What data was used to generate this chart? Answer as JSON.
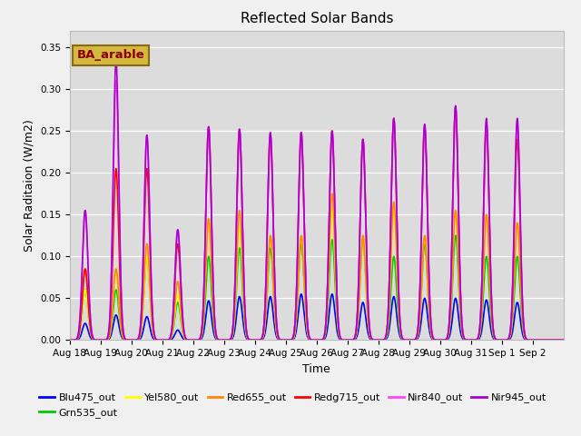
{
  "title": "Reflected Solar Bands",
  "xlabel": "Time",
  "ylabel": "Solar Raditaion (W/m2)",
  "ylim": [
    0.0,
    0.37
  ],
  "yticks": [
    0.0,
    0.05,
    0.1,
    0.15,
    0.2,
    0.25,
    0.3,
    0.35
  ],
  "axes_facecolor": "#dcdcdc",
  "annotation_text": "BA_arable",
  "annotation_color": "#8B0000",
  "annotation_bg": "#d4b840",
  "annotation_edge": "#8B6914",
  "series": [
    {
      "name": "Blu475_out",
      "color": "#0000ff",
      "lw": 1.2,
      "key": "blu"
    },
    {
      "name": "Grn535_out",
      "color": "#00cc00",
      "lw": 1.2,
      "key": "grn"
    },
    {
      "name": "Yel580_out",
      "color": "#ffff00",
      "lw": 1.2,
      "key": "yel"
    },
    {
      "name": "Red655_out",
      "color": "#ff8800",
      "lw": 1.2,
      "key": "red"
    },
    {
      "name": "Redg715_out",
      "color": "#ff0000",
      "lw": 1.2,
      "key": "redg"
    },
    {
      "name": "Nir840_out",
      "color": "#ff44ff",
      "lw": 1.2,
      "key": "nir840"
    },
    {
      "name": "Nir945_out",
      "color": "#aa00cc",
      "lw": 1.2,
      "key": "nir945"
    }
  ],
  "xtick_labels": [
    "Aug 18",
    "Aug 19",
    "Aug 20",
    "Aug 21",
    "Aug 22",
    "Aug 23",
    "Aug 24",
    "Aug 25",
    "Aug 26",
    "Aug 27",
    "Aug 28",
    "Aug 29",
    "Aug 30",
    "Aug 31",
    "Sep 1",
    "Sep 2"
  ],
  "num_days": 16,
  "sigma": 0.09,
  "peaks": [
    {
      "day": 0,
      "blu": 0.02,
      "grn": 0.06,
      "yel": 0.06,
      "red": 0.085,
      "redg": 0.085,
      "nir840": 0.155,
      "nir945": 0.155
    },
    {
      "day": 1,
      "blu": 0.03,
      "grn": 0.06,
      "yel": 0.08,
      "red": 0.085,
      "redg": 0.205,
      "nir840": 0.31,
      "nir945": 0.335
    },
    {
      "day": 2,
      "blu": 0.028,
      "grn": 0.1,
      "yel": 0.1,
      "red": 0.115,
      "redg": 0.205,
      "nir840": 0.245,
      "nir945": 0.245
    },
    {
      "day": 3,
      "blu": 0.012,
      "grn": 0.045,
      "yel": 0.055,
      "red": 0.07,
      "redg": 0.115,
      "nir840": 0.132,
      "nir945": 0.132
    },
    {
      "day": 4,
      "blu": 0.047,
      "grn": 0.1,
      "yel": 0.145,
      "red": 0.145,
      "redg": 0.255,
      "nir840": 0.255,
      "nir945": 0.255
    },
    {
      "day": 5,
      "blu": 0.052,
      "grn": 0.11,
      "yel": 0.135,
      "red": 0.155,
      "redg": 0.252,
      "nir840": 0.252,
      "nir945": 0.252
    },
    {
      "day": 6,
      "blu": 0.052,
      "grn": 0.11,
      "yel": 0.125,
      "red": 0.125,
      "redg": 0.245,
      "nir840": 0.248,
      "nir945": 0.248
    },
    {
      "day": 7,
      "blu": 0.055,
      "grn": 0.115,
      "yel": 0.125,
      "red": 0.125,
      "redg": 0.248,
      "nir840": 0.248,
      "nir945": 0.248
    },
    {
      "day": 8,
      "blu": 0.055,
      "grn": 0.12,
      "yel": 0.155,
      "red": 0.175,
      "redg": 0.25,
      "nir840": 0.25,
      "nir945": 0.25
    },
    {
      "day": 9,
      "blu": 0.045,
      "grn": 0.12,
      "yel": 0.125,
      "red": 0.125,
      "redg": 0.24,
      "nir840": 0.24,
      "nir945": 0.24
    },
    {
      "day": 10,
      "blu": 0.052,
      "grn": 0.1,
      "yel": 0.155,
      "red": 0.165,
      "redg": 0.265,
      "nir840": 0.265,
      "nir945": 0.265
    },
    {
      "day": 11,
      "blu": 0.05,
      "grn": 0.115,
      "yel": 0.125,
      "red": 0.125,
      "redg": 0.255,
      "nir840": 0.258,
      "nir945": 0.258
    },
    {
      "day": 12,
      "blu": 0.05,
      "grn": 0.125,
      "yel": 0.155,
      "red": 0.155,
      "redg": 0.278,
      "nir840": 0.28,
      "nir945": 0.28
    },
    {
      "day": 13,
      "blu": 0.048,
      "grn": 0.1,
      "yel": 0.15,
      "red": 0.15,
      "redg": 0.255,
      "nir840": 0.26,
      "nir945": 0.265
    },
    {
      "day": 14,
      "blu": 0.045,
      "grn": 0.1,
      "yel": 0.14,
      "red": 0.14,
      "redg": 0.24,
      "nir840": 0.26,
      "nir945": 0.265
    },
    {
      "day": 15,
      "blu": 0.0,
      "grn": 0.0,
      "yel": 0.0,
      "red": 0.0,
      "redg": 0.0,
      "nir840": 0.0,
      "nir945": 0.0
    }
  ]
}
